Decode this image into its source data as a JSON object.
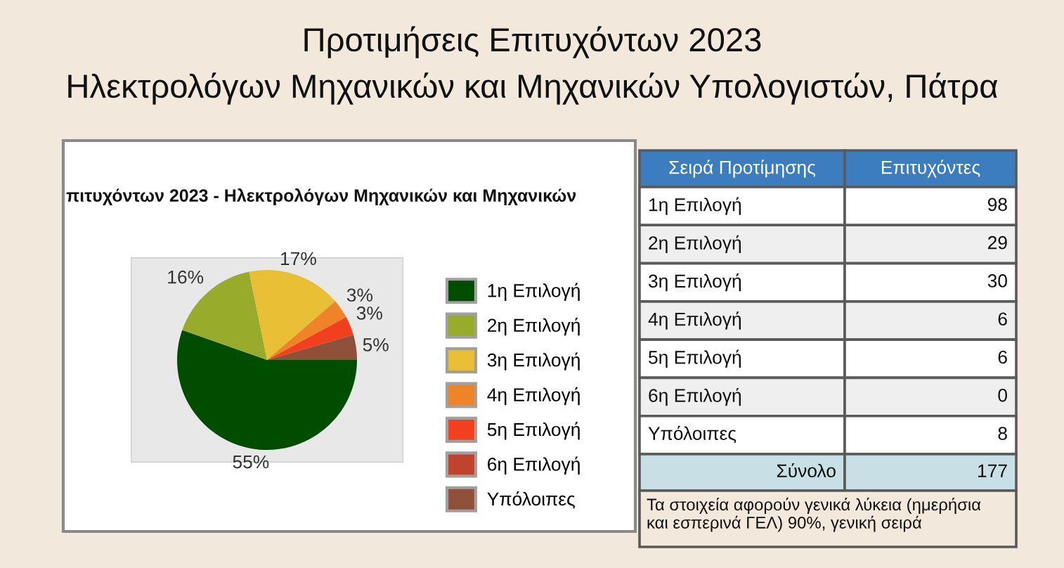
{
  "chart_data": [
    {
      "type": "pie",
      "title": "Προτιμήσεις Επιτυχόντων 2023",
      "subtitle": "Ηλεκτρολόγων Μηχανικών και Μηχανικών Υπολογιστών, Πάτρα",
      "annotations": [
        "πιτυχόντων 2023 - Ηλεκτρολόγων Μηχανικών και Μηχανικών"
      ],
      "categories": [
        "1η Επιλογή",
        "2η Επιλογή",
        "3η Επιλογή",
        "4η Επιλογή",
        "5η Επιλογή",
        "6η Επιλογή",
        "Υπόλοιπες"
      ],
      "values": [
        55.4,
        16.4,
        16.9,
        3.4,
        3.4,
        0,
        4.5
      ],
      "colors": [
        "#004d00",
        "#98ab2a",
        "#e9bf35",
        "#ee8427",
        "#f2401f",
        "#c0432d",
        "#8e5038"
      ],
      "value_labels": [
        "55%",
        "16%",
        "17%",
        "3%",
        "3%",
        null,
        "5%"
      ],
      "legend": "right"
    },
    {
      "type": "other",
      "xlabel": "Σειρά Προτίμησης",
      "ylabel": "Επιτυχόντες",
      "categories": [
        "1η Επιλογή",
        "2η Επιλογή",
        "3η Επιλογή",
        "4η Επιλογή",
        "5η Επιλογή",
        "6η Επιλογή",
        "Υπόλοιπες"
      ],
      "values": [
        98,
        29,
        30,
        6,
        6,
        0,
        8
      ],
      "data_labels": true,
      "totals": [
        "177"
      ],
      "annotations": [
        "Σύνολο",
        "Τα στοιχεία αφορούν γενικά λύκεια (ημερήσια και εσπερινά ΓΕΛ) 90%, γενική σειρά"
      ]
    }
  ]
}
